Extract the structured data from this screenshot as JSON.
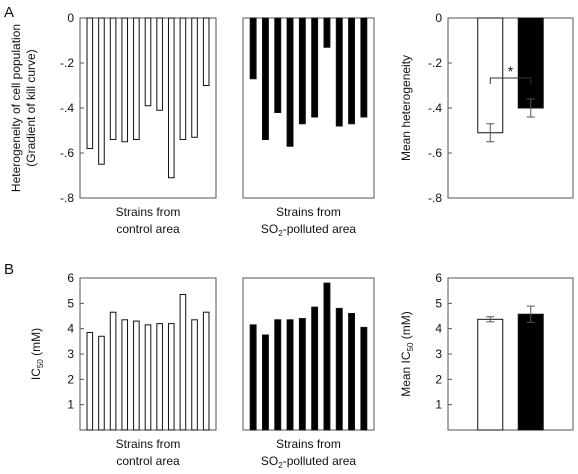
{
  "panel_labels": {
    "a": "A",
    "b": "B"
  },
  "chart_data": [
    {
      "id": "A-control",
      "type": "bar",
      "panel": "A",
      "ylabel": "Heterogeneity of cell population",
      "ylabel2": "(Gradient of kill curve)",
      "xlabel": "Strains from",
      "xlabel2": "control area",
      "xlabel2_sub": "",
      "ylim": [
        -0.8,
        0
      ],
      "ticks": [
        0,
        -0.2,
        -0.4,
        -0.6,
        -0.8
      ],
      "fill": "#ffffff",
      "values": [
        -0.58,
        -0.65,
        -0.54,
        -0.55,
        -0.54,
        -0.39,
        -0.41,
        -0.71,
        -0.54,
        -0.53,
        -0.3
      ]
    },
    {
      "id": "A-polluted",
      "type": "bar",
      "panel": "A",
      "xlabel": "Strains from",
      "xlabel2": "SO",
      "xlabel2_sub": "2",
      "xlabel2_tail": "-polluted area",
      "ylim": [
        -0.8,
        0
      ],
      "ticks": [],
      "fill": "#000000",
      "values": [
        -0.27,
        -0.54,
        -0.42,
        -0.57,
        -0.47,
        -0.44,
        -0.13,
        -0.48,
        -0.47,
        -0.44
      ]
    },
    {
      "id": "A-mean",
      "type": "bar",
      "panel": "A",
      "ylabel": "Mean heterogeneity",
      "ylim": [
        -0.8,
        0
      ],
      "ticks": [
        0,
        -0.2,
        -0.4,
        -0.6,
        -0.8
      ],
      "annotation": "*",
      "fills": [
        "#ffffff",
        "#000000"
      ],
      "values": [
        -0.51,
        -0.4
      ],
      "errors": [
        0.04,
        0.04
      ]
    },
    {
      "id": "B-control",
      "type": "bar",
      "panel": "B",
      "ylabel": "IC",
      "ylabel_sub": "50",
      "ylabel_tail": " (mM)",
      "xlabel": "Strains from",
      "xlabel2": "control area",
      "xlabel2_sub": "",
      "ylim": [
        0,
        6
      ],
      "ticks": [
        1,
        2,
        3,
        4,
        5,
        6
      ],
      "fill": "#ffffff",
      "values": [
        3.85,
        3.7,
        4.65,
        4.35,
        4.3,
        4.15,
        4.2,
        4.2,
        5.35,
        4.35,
        4.65
      ]
    },
    {
      "id": "B-polluted",
      "type": "bar",
      "panel": "B",
      "xlabel": "Strains from",
      "xlabel2": "SO",
      "xlabel2_sub": "2",
      "xlabel2_tail": "-polluted area",
      "ylim": [
        0,
        6
      ],
      "ticks": [],
      "fill": "#000000",
      "values": [
        4.15,
        3.75,
        4.35,
        4.35,
        4.4,
        4.85,
        5.8,
        4.8,
        4.6,
        4.05
      ]
    },
    {
      "id": "B-mean",
      "type": "bar",
      "panel": "B",
      "ylabel": "Mean IC",
      "ylabel_sub": "50",
      "ylabel_tail": " (mM)",
      "ylim": [
        0,
        6
      ],
      "ticks": [
        1,
        2,
        3,
        4,
        5,
        6
      ],
      "fills": [
        "#ffffff",
        "#000000"
      ],
      "values": [
        4.37,
        4.57
      ],
      "errors": [
        0.1,
        0.32
      ]
    }
  ]
}
